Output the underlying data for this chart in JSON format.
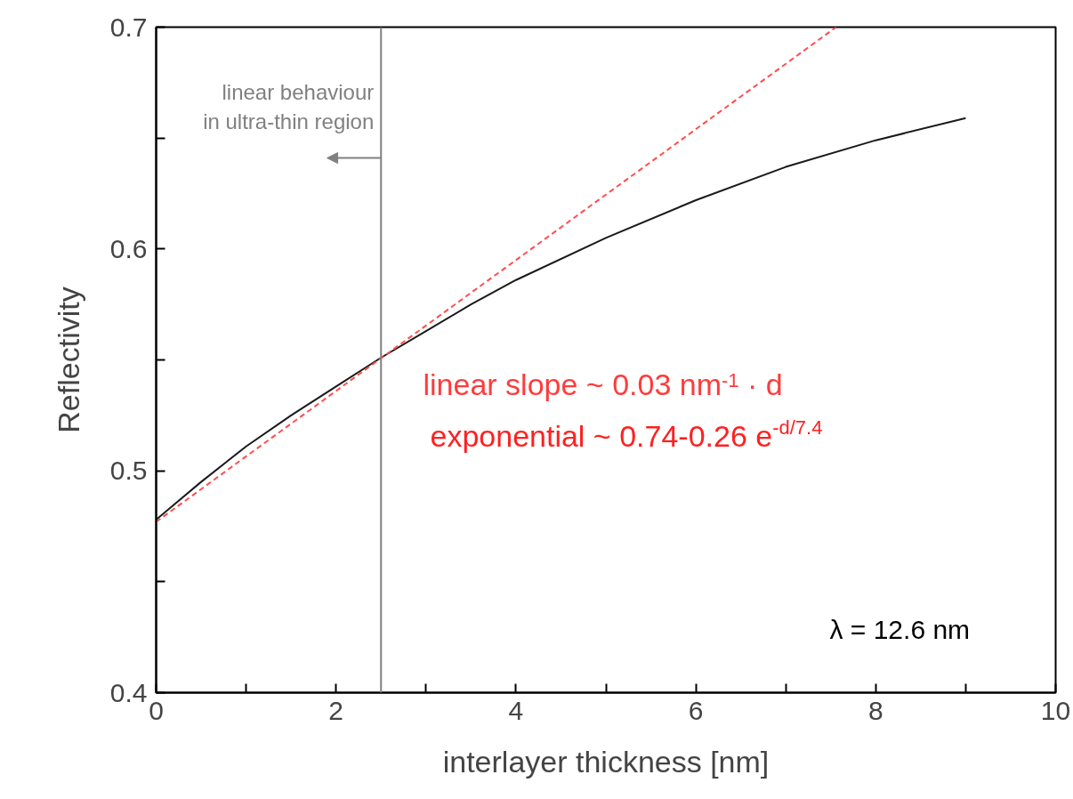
{
  "chart_data": {
    "type": "line",
    "xlabel": "interlayer thickness [nm]",
    "ylabel": "Reflectivity",
    "xlim": [
      0,
      10
    ],
    "ylim": [
      0.4,
      0.7
    ],
    "xticks": [
      0,
      {
        "value": 1,
        "label": null
      },
      2,
      {
        "value": 3,
        "label": null
      },
      4,
      {
        "value": 5,
        "label": null
      },
      6,
      {
        "value": 7,
        "label": null
      },
      8,
      {
        "value": 9,
        "label": null
      },
      10
    ],
    "yticks": [
      0.4,
      {
        "value": 0.45,
        "label": null
      },
      0.5,
      {
        "value": 0.55,
        "label": null
      },
      0.6,
      {
        "value": 0.65,
        "label": null
      },
      0.7
    ],
    "grid": false,
    "series": [
      {
        "color": "#1a1a1a",
        "line_style": "solid",
        "x": [
          0,
          0.5,
          1,
          1.5,
          2,
          2.5,
          3,
          3.5,
          4,
          5,
          6,
          7,
          8,
          9
        ],
        "values": [
          0.478,
          0.495,
          0.511,
          0.525,
          0.538,
          0.551,
          0.563,
          0.575,
          0.586,
          0.605,
          0.622,
          0.637,
          0.649,
          0.659
        ]
      },
      {
        "color": "#ff4d4d",
        "line_style": "dashed",
        "x": [
          0,
          7.56
        ],
        "values": [
          0.477,
          0.7
        ]
      }
    ],
    "ref_lines": [
      {
        "axis": "x",
        "value": 2.5,
        "color": "#808080"
      }
    ],
    "annotations": [
      {
        "text": "linear behaviour\nin ultra-thin region",
        "x": 2.5,
        "y": 0.641
      },
      "linear slope ~ 0.03 nm$^{-1}$ · d",
      "exponential ~ 0.74-0.26 e$^{-d/7.4}$",
      "λ = 12.6 nm"
    ]
  }
}
